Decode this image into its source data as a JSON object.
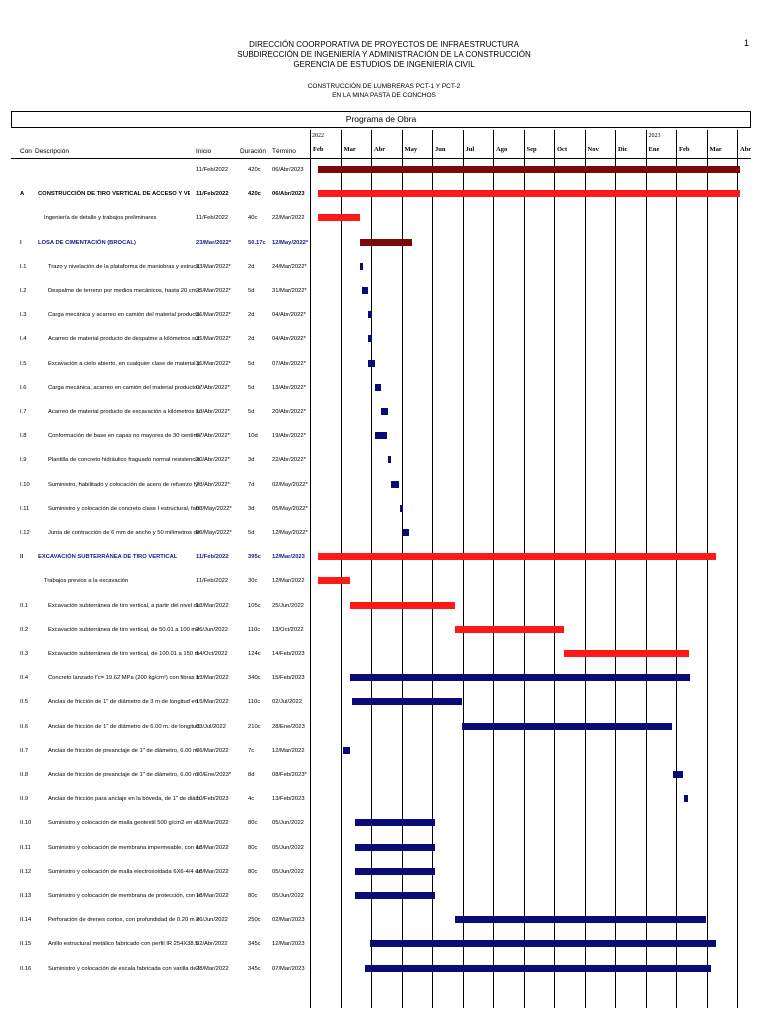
{
  "header": {
    "page_number": "1",
    "line1": "DIRECCIÓN COORPORATIVA DE PROYECTOS DE INFRAESTRUCTURA",
    "line2": "SUBDIRECCIÓN DE INGENIERÍA Y ADMINISTRACIÓN DE LA CONSTRUCCIÓN",
    "line3": "GERENCIA DE ESTUDIOS DE INGENIERÍA CIVIL",
    "line4": "CONSTRUCCIÓN DE LUMBRERAS PCT-1 Y PCT-2",
    "line5": "EN LA MINA PASTA DE CONCHOS",
    "program_title": "Programa de Obra"
  },
  "columns": {
    "id": "Con",
    "description": "Descripción",
    "start": "Inicio",
    "duration": "Duración",
    "end": "Término"
  },
  "timeline": {
    "year1": "2022",
    "year2": "2023",
    "months": [
      "Feb",
      "Mar",
      "Abr",
      "May",
      "Jun",
      "Jul",
      "Ago",
      "Sep",
      "Oct",
      "Nov",
      "Dic",
      "Ene",
      "Feb",
      "Mar",
      "Abr"
    ]
  },
  "colors": {
    "summary_dark": "#7a0a0a",
    "red": "#ff1a1a",
    "navy": "#0a0a78"
  },
  "rows": [
    {
      "id": "",
      "desc": "",
      "start": "11/Feb/2022",
      "dur": "420c",
      "end": "06/Abr/2023",
      "style": "normal",
      "bar": {
        "color": "dark",
        "start": 0.0,
        "end": 13.85
      }
    },
    {
      "id": "A",
      "desc": "CONSTRUCCIÓN DE TIRO VERTICAL DE ACCESO Y VENTILACIÓN",
      "start": "11/Feb/2022",
      "dur": "420c",
      "end": "06/Abr/2023",
      "style": "bold",
      "bar": {
        "color": "red",
        "start": 0.0,
        "end": 13.85
      }
    },
    {
      "id": "",
      "desc": "Ingeniería de detalle y trabajos preliminares",
      "start": "11/Feb/2022",
      "dur": "40c",
      "end": "22/Mar/2022",
      "style": "normal",
      "bar": {
        "color": "red",
        "start": 0.0,
        "end": 1.38
      }
    },
    {
      "id": "I",
      "desc": "LOSA DE CIMENTACIÓN (BROCAL)",
      "start": "23/Mar/2022*",
      "dur": "50.17c",
      "end": "12/May/2022*",
      "style": "blue",
      "bar": {
        "color": "dark",
        "start": 1.38,
        "end": 3.07
      }
    },
    {
      "id": "I.1",
      "desc": "Trazo y nivelación de la plataforma de maniobras y estructura de",
      "start": "23/Mar/2022*",
      "dur": "2d",
      "end": "24/Mar/2022*",
      "style": "normal",
      "bar": {
        "color": "navy",
        "start": 1.38,
        "end": 1.45
      }
    },
    {
      "id": "I.2",
      "desc": "Despalme de terreno por medios mecánicos, hasta 20 cm de esp",
      "start": "25/Mar/2022*",
      "dur": "5d",
      "end": "31/Mar/2022*",
      "style": "normal",
      "bar": {
        "color": "navy",
        "start": 1.45,
        "end": 1.65
      }
    },
    {
      "id": "I.3",
      "desc": "Carga mecánica y acarreo en camión del material producto de l",
      "start": "31/Mar/2022*",
      "dur": "2d",
      "end": "04/Abr/2022*",
      "style": "normal",
      "bar": {
        "color": "navy",
        "start": 1.65,
        "end": 1.76
      }
    },
    {
      "id": "I.4",
      "desc": "Acarreo de material producto de despalme a kilómetros subsec",
      "start": "31/Mar/2022*",
      "dur": "2d",
      "end": "04/Abr/2022*",
      "style": "normal",
      "bar": {
        "color": "navy",
        "start": 1.65,
        "end": 1.76
      }
    },
    {
      "id": "I.5",
      "desc": "Excavación a cielo abierto, en cualquier clase de material por me",
      "start": "31/Mar/2022*",
      "dur": "5d",
      "end": "07/Abr/2022*",
      "style": "normal",
      "bar": {
        "color": "navy",
        "start": 1.65,
        "end": 1.86
      }
    },
    {
      "id": "I.6",
      "desc": "Carga mecánica, acarreo en camión del material producto de exc",
      "start": "07/Abr/2022*",
      "dur": "5d",
      "end": "13/Abr/2022*",
      "style": "normal",
      "bar": {
        "color": "navy",
        "start": 1.86,
        "end": 2.06
      }
    },
    {
      "id": "I.7",
      "desc": "Acarreo de material producto de excavación a kilómetros subsec",
      "start": "13/Abr/2022*",
      "dur": "5d",
      "end": "20/Abr/2022*",
      "style": "normal",
      "bar": {
        "color": "navy",
        "start": 2.06,
        "end": 2.29
      }
    },
    {
      "id": "I.8",
      "desc": "Conformación de base en capas no mayores de 30 centímetros de",
      "start": "07/Abr/2022*",
      "dur": "10d",
      "end": "19/Abr/2022*",
      "style": "normal",
      "bar": {
        "color": "navy",
        "start": 1.86,
        "end": 2.26
      }
    },
    {
      "id": "I.9",
      "desc": "Plantilla de concreto hidráulico fraguado normal resistencia f'c= 1",
      "start": "20/Abr/2022*",
      "dur": "3d",
      "end": "22/Abr/2022*",
      "style": "normal",
      "bar": {
        "color": "navy",
        "start": 2.29,
        "end": 2.36
      }
    },
    {
      "id": "I.10",
      "desc": "Suministro, habilitado y colocación de acero de refuerzo fy= 411",
      "start": "23/Abr/2022*",
      "dur": "7d",
      "end": "02/May/2022*",
      "style": "normal",
      "bar": {
        "color": "navy",
        "start": 2.39,
        "end": 2.67
      }
    },
    {
      "id": "I.11",
      "desc": "Suministro y colocación de concreto clase I estructural, fabricado",
      "start": "03/May/2022*",
      "dur": "3d",
      "end": "05/May/2022*",
      "style": "normal",
      "bar": {
        "color": "navy",
        "start": 2.69,
        "end": 2.76
      }
    },
    {
      "id": "I.12",
      "desc": "Junta de contracción de 6 mm de ancho y 50 milímetros de profu",
      "start": "06/May/2022*",
      "dur": "5d",
      "end": "12/May/2022*",
      "style": "normal",
      "bar": {
        "color": "navy",
        "start": 2.79,
        "end": 2.98
      }
    },
    {
      "id": "II",
      "desc": "EXCAVACIÓN SUBTERRÁNEA DE TIRO VERTICAL",
      "start": "11/Feb/2022",
      "dur": "395c",
      "end": "12/Mar/2023",
      "style": "blue",
      "bar": {
        "color": "red",
        "start": 0.0,
        "end": 13.05
      }
    },
    {
      "id": "",
      "desc": "Trabajos previos a la excavación",
      "start": "11/Feb/2022",
      "dur": "30c",
      "end": "12/Mar/2022",
      "style": "normal",
      "bar": {
        "color": "red",
        "start": 0.0,
        "end": 1.05
      }
    },
    {
      "id": "II.1",
      "desc": "Excavación subterránea de tiro vertical, a partir del nivel de terre",
      "start": "13/Mar/2022",
      "dur": "105c",
      "end": "25/Jun/2022",
      "style": "normal",
      "bar": {
        "color": "red",
        "start": 1.05,
        "end": 4.49
      }
    },
    {
      "id": "II.2",
      "desc": "Excavación subterránea de tiro vertical, de 50.01 a 100 metros de",
      "start": "26/Jun/2022",
      "dur": "110c",
      "end": "13/Oct/2022",
      "style": "normal",
      "bar": {
        "color": "red",
        "start": 4.49,
        "end": 8.07
      }
    },
    {
      "id": "II.3",
      "desc": "Excavación subterránea de tiro vertical, de 100.01 a 150 metros d",
      "start": "14/Oct/2022",
      "dur": "124c",
      "end": "14/Feb/2023",
      "style": "normal",
      "bar": {
        "color": "red",
        "start": 8.07,
        "end": 12.17
      }
    },
    {
      "id": "II.4",
      "desc": "Concreto lanzado f'c= 19.62 MPa (200 kg/cm²) con fibras metálic",
      "start": "13/Mar/2022",
      "dur": "340c",
      "end": "15/Feb/2023",
      "style": "normal",
      "bar": {
        "color": "navy",
        "start": 1.05,
        "end": 12.2
      }
    },
    {
      "id": "II.5",
      "desc": "Anclas de fricción de 1\" de diámetro de 3 m de longitud en la sup",
      "start": "15/Mar/2022",
      "dur": "110c",
      "end": "02/Jul/2022",
      "style": "normal",
      "bar": {
        "color": "navy",
        "start": 1.12,
        "end": 4.72
      }
    },
    {
      "id": "II.6",
      "desc": "Anclas de fricción de 1\" de diámetro de 6.00 m. de longitud en la",
      "start": "03/Jul/2022",
      "dur": "210c",
      "end": "28/Ene/2023",
      "style": "normal",
      "bar": {
        "color": "navy",
        "start": 4.72,
        "end": 11.6
      }
    },
    {
      "id": "II.7",
      "desc": "Anclas de fricción de preanclaje de 1\" de diámetro, 6.00 m de lon",
      "start": "06/Mar/2022",
      "dur": "7c",
      "end": "12/Mar/2022",
      "style": "normal",
      "bar": {
        "color": "navy",
        "start": 0.82,
        "end": 1.05
      }
    },
    {
      "id": "II.8",
      "desc": "Anclas de fricción de preanclaje de 1\" de diámetro, 6.00 m de lon",
      "start": "30/Ene/2023*",
      "dur": "8d",
      "end": "08/Feb/2023*",
      "style": "normal",
      "bar": {
        "color": "navy",
        "start": 11.65,
        "end": 11.96
      }
    },
    {
      "id": "II.9",
      "desc": "Anclas de fricción para anclaje en la bóveda, de 1\" de diámetro, 4.5",
      "start": "10/Feb/2023",
      "dur": "4c",
      "end": "13/Feb/2023",
      "style": "normal",
      "bar": {
        "color": "navy",
        "start": 12.0,
        "end": 12.13
      }
    },
    {
      "id": "II.10",
      "desc": "Suministro y colocación de malla geotextil 500 g/cm2 en el interior c",
      "start": "18/Mar/2022",
      "dur": "80c",
      "end": "05/Jun/2022",
      "style": "normal",
      "bar": {
        "color": "navy",
        "start": 1.22,
        "end": 3.82
      }
    },
    {
      "id": "II.11",
      "desc": "Suministro y colocación de membrana impermeable, con espeso",
      "start": "18/Mar/2022",
      "dur": "80c",
      "end": "05/Jun/2022",
      "style": "normal",
      "bar": {
        "color": "navy",
        "start": 1.22,
        "end": 3.82
      }
    },
    {
      "id": "II.12",
      "desc": "Suministro y colocación de malla electrosoldada 6X6-4/4 en dos c",
      "start": "18/Mar/2022",
      "dur": "80c",
      "end": "05/Jun/2022",
      "style": "normal",
      "bar": {
        "color": "navy",
        "start": 1.22,
        "end": 3.82
      }
    },
    {
      "id": "II.13",
      "desc": "Suministro y colocación de membrana de protección, con espeso",
      "start": "18/Mar/2022",
      "dur": "80c",
      "end": "05/Jun/2022",
      "style": "normal",
      "bar": {
        "color": "navy",
        "start": 1.22,
        "end": 3.82
      }
    },
    {
      "id": "II.14",
      "desc": "Perforación de drenes cortos, con profundidad de 0.20 m en la l",
      "start": "26/Jun/2022",
      "dur": "250c",
      "end": "02/Mar/2023",
      "style": "normal",
      "bar": {
        "color": "navy",
        "start": 4.49,
        "end": 12.72
      }
    },
    {
      "id": "II.15",
      "desc": "Anillo estructural metálico fabricado con perfil IR 254X38.5 kg/m,",
      "start": "02/Abr/2022",
      "dur": "345c",
      "end": "12/Mar/2023",
      "style": "normal",
      "bar": {
        "color": "navy",
        "start": 1.69,
        "end": 13.05
      }
    },
    {
      "id": "II.16",
      "desc": "Suministro y colocación de escala fabricada con varilla de lat.metc",
      "start": "28/Mar/2022",
      "dur": "345c",
      "end": "07/Mar/2023",
      "style": "normal",
      "bar": {
        "color": "navy",
        "start": 1.55,
        "end": 12.89
      }
    }
  ]
}
